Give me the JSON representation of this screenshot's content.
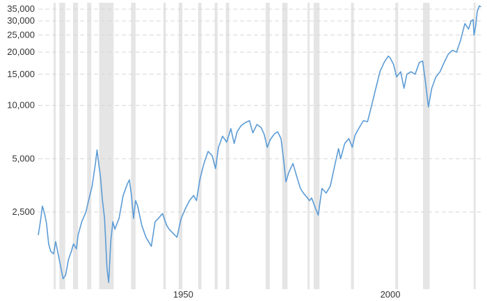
{
  "chart_data": {
    "type": "line",
    "title": "",
    "xlabel": "",
    "ylabel": "",
    "y_scale": "log",
    "xlim": [
      1915,
      2022
    ],
    "ylim": [
      950,
      38000
    ],
    "x_ticks": [
      1950,
      2000
    ],
    "x_tick_labels": [
      "1950",
      "2000"
    ],
    "y_ticks": [
      2500,
      5000,
      10000,
      15000,
      20000,
      25000,
      30000,
      35000
    ],
    "y_tick_labels": [
      "2,500",
      "5,000",
      "10,000",
      "15,000",
      "20,000",
      "25,000",
      "30,000",
      "35,000"
    ],
    "grid": "horizontal dashed",
    "legend": "none",
    "shaded_periods": [
      [
        1918.7,
        1919.2
      ],
      [
        1920.1,
        1921.5
      ],
      [
        1923.4,
        1924.6
      ],
      [
        1926.8,
        1927.8
      ],
      [
        1929.7,
        1933.2
      ],
      [
        1937.4,
        1938.5
      ],
      [
        1945.2,
        1945.8
      ],
      [
        1948.9,
        1949.8
      ],
      [
        1953.6,
        1954.4
      ],
      [
        1957.6,
        1958.3
      ],
      [
        1960.3,
        1961.1
      ],
      [
        1969.9,
        1970.9
      ],
      [
        1973.9,
        1975.2
      ],
      [
        1980.0,
        1980.5
      ],
      [
        1981.5,
        1982.9
      ],
      [
        1990.5,
        1991.2
      ],
      [
        2001.2,
        2001.9
      ],
      [
        2007.9,
        2009.5
      ],
      [
        2020.1,
        2020.4
      ]
    ],
    "series": [
      {
        "color": "#5b9bd5",
        "x": [
          1915.0,
          1915.5,
          1916.0,
          1916.6,
          1917.0,
          1917.5,
          1918.0,
          1918.7,
          1919.2,
          1919.8,
          1920.5,
          1921.0,
          1921.6,
          1922.3,
          1923.0,
          1923.5,
          1924.2,
          1924.6,
          1925.5,
          1926.5,
          1927.3,
          1928.0,
          1928.8,
          1929.2,
          1929.7,
          1930.0,
          1930.5,
          1931.0,
          1931.6,
          1932.0,
          1932.5,
          1933.0,
          1933.5,
          1934.5,
          1935.5,
          1936.5,
          1937.0,
          1937.5,
          1938.0,
          1938.5,
          1939.0,
          1940.0,
          1941.0,
          1942.3,
          1943.2,
          1944.0,
          1945.0,
          1946.0,
          1946.6,
          1947.5,
          1948.5,
          1949.5,
          1950.5,
          1951.5,
          1952.5,
          1953.2,
          1954.0,
          1955.0,
          1956.0,
          1957.0,
          1957.8,
          1958.5,
          1959.5,
          1960.5,
          1961.5,
          1962.3,
          1963.0,
          1964.0,
          1965.0,
          1966.0,
          1966.8,
          1967.8,
          1968.8,
          1969.5,
          1970.3,
          1971.0,
          1972.0,
          1972.8,
          1973.6,
          1974.3,
          1974.8,
          1975.5,
          1976.5,
          1977.5,
          1978.3,
          1979.0,
          1980.0,
          1980.5,
          1981.0,
          1982.0,
          1982.6,
          1983.5,
          1984.5,
          1985.5,
          1986.5,
          1987.5,
          1988.0,
          1989.0,
          1990.0,
          1990.8,
          1991.5,
          1992.5,
          1993.5,
          1994.5,
          1995.5,
          1996.5,
          1997.5,
          1998.5,
          1999.5,
          2000.0,
          2000.8,
          2001.5,
          2002.5,
          2003.3,
          2004.0,
          2005.0,
          2006.0,
          2007.0,
          2007.8,
          2008.5,
          2009.2,
          2010.0,
          2011.0,
          2012.0,
          2013.0,
          2014.0,
          2015.0,
          2016.0,
          2017.0,
          2018.0,
          2018.9,
          2019.5,
          2020.0,
          2020.2,
          2020.6,
          2021.0,
          2021.5,
          2021.9
        ],
        "y": [
          1850,
          2200,
          2700,
          2400,
          2150,
          1650,
          1500,
          1450,
          1700,
          1450,
          1200,
          1050,
          1100,
          1350,
          1500,
          1650,
          1550,
          1850,
          2200,
          2500,
          3000,
          3500,
          4700,
          5600,
          4500,
          4000,
          2900,
          2300,
          1200,
          1000,
          1700,
          2200,
          2000,
          2300,
          3100,
          3600,
          3800,
          3100,
          2300,
          2900,
          2700,
          2100,
          1800,
          1600,
          2200,
          2300,
          2450,
          2100,
          2000,
          1900,
          1800,
          2300,
          2600,
          2900,
          3100,
          2900,
          3800,
          4700,
          5500,
          5200,
          4400,
          5800,
          6700,
          6200,
          7400,
          6100,
          7100,
          7700,
          8000,
          8200,
          7000,
          7800,
          7500,
          6900,
          5800,
          6400,
          6900,
          7100,
          6500,
          4800,
          3700,
          4200,
          4700,
          3900,
          3400,
          3200,
          3000,
          2900,
          3000,
          2600,
          2400,
          3400,
          3200,
          3500,
          4500,
          5700,
          5000,
          6100,
          6500,
          5800,
          6800,
          7500,
          8200,
          8100,
          10000,
          12500,
          15500,
          17500,
          19000,
          18500,
          17000,
          14500,
          15500,
          12500,
          15000,
          15500,
          15000,
          17500,
          17800,
          13500,
          9800,
          12500,
          14500,
          15500,
          17500,
          19500,
          20500,
          20000,
          23500,
          29000,
          27000,
          30000,
          30500,
          25000,
          28000,
          34000,
          36500,
          36000
        ]
      }
    ]
  }
}
